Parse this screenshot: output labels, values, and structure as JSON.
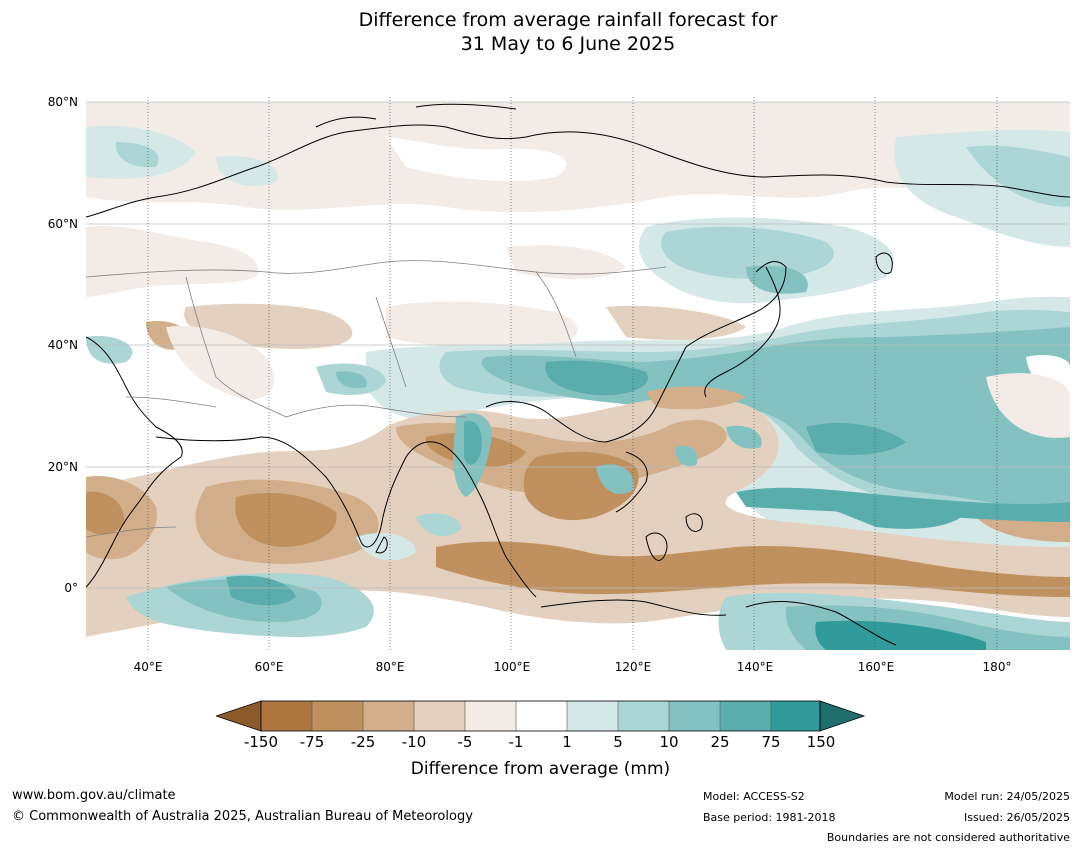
{
  "title": {
    "line1": "Difference from average rainfall forecast for",
    "line2": "31 May to 6 June 2025"
  },
  "map": {
    "lat_labels": [
      "80°N",
      "60°N",
      "40°N",
      "20°N",
      "0°"
    ],
    "lon_labels": [
      "40°E",
      "60°E",
      "80°E",
      "100°E",
      "120°E",
      "140°E",
      "160°E",
      "180°"
    ],
    "extent": {
      "lon_min": 30,
      "lon_max": 192,
      "lat_min": -10,
      "lat_max": 81
    }
  },
  "colorbar": {
    "tick_labels": [
      "-150",
      "-75",
      "-25",
      "-10",
      "-5",
      "-1",
      "1",
      "5",
      "10",
      "25",
      "75",
      "150"
    ],
    "colors": [
      "#8c5a2a",
      "#ad7640",
      "#c0915f",
      "#d2ae8a",
      "#e3d0be",
      "#f3ece6",
      "#ffffff",
      "#d5e8e8",
      "#acd5d5",
      "#84c2c2",
      "#5aadad",
      "#319a9a",
      "#1e6e6e"
    ],
    "label": "Difference from average (mm)"
  },
  "footer": {
    "website": "www.bom.gov.au/climate",
    "copyright": "© Commonwealth of Australia 2025, Australian Bureau of Meteorology",
    "model": "Model: ACCESS-S2",
    "base_period": "Base period: 1981-2018",
    "model_run": "Model run: 24/05/2025",
    "issued": "Issued: 26/05/2025",
    "disclaimer": "Boundaries are not considered authoritative"
  }
}
